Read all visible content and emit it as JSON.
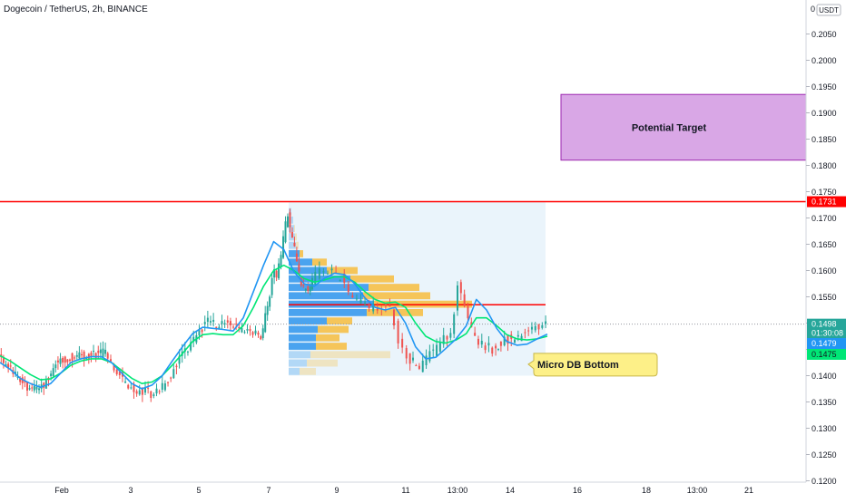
{
  "header": {
    "title": "Dogecoin / TetherUS, 2h, BINANCE"
  },
  "colors": {
    "up": "#26a69a",
    "down": "#ef5350",
    "ema_fast": "#2196f3",
    "ema_slow": "#00e676",
    "resistance": "#ff0000",
    "target_fill": "#d9a7e6",
    "target_stroke": "#9c27b0",
    "vp_up": "#4aa3ef",
    "vp_down": "#f5c55a",
    "range_fill": "#eaf4fb",
    "callout_fill": "#fdf088"
  },
  "chart_data": {
    "type": "candlestick",
    "symbol": "Dogecoin / TetherUS",
    "interval": "2h",
    "exchange": "BINANCE",
    "currency": "USDT",
    "ylim": [
      0.12,
      0.21
    ],
    "y_ticks": [
      "0.2050",
      "0.2000",
      "0.1950",
      "0.1900",
      "0.1850",
      "0.1800",
      "0.1750",
      "0.1700",
      "0.1650",
      "0.1600",
      "0.1550",
      "0.1500",
      "0.1450",
      "0.1400",
      "0.1350",
      "0.1300",
      "0.1250",
      "0.1200"
    ],
    "x_ticks": [
      "Feb",
      "3",
      "5",
      "7",
      "9",
      "11",
      "13:00",
      "14",
      "16",
      "18",
      "13:00",
      "21"
    ],
    "price_path": [
      [
        0.1433,
        0.1425,
        0.1418,
        0.1405,
        0.1395,
        0.1387,
        0.138,
        0.1375,
        0.1372,
        0.1378,
        0.139,
        0.1405,
        0.142,
        0.1428,
        0.1432,
        0.1435,
        0.1437,
        0.1438,
        0.1436,
        0.1439,
        0.1442,
        0.144,
        0.1443,
        0.1438
      ],
      [
        0.1425,
        0.1408,
        0.1395,
        0.1382,
        0.1372,
        0.1368,
        0.1373,
        0.1365,
        0.1372,
        0.1378,
        0.1395,
        0.141,
        0.143,
        0.1445,
        0.146,
        0.1475,
        0.149,
        0.1502,
        0.1498,
        0.1495,
        0.15,
        0.1497,
        0.1492,
        0.1488
      ],
      [
        0.1482,
        0.1475,
        0.149,
        0.151,
        0.153,
        0.1555,
        0.158,
        0.16,
        0.159,
        0.161,
        0.163,
        0.166,
        0.169,
        0.1705,
        0.1682,
        0.166,
        0.164,
        0.161,
        0.159,
        0.1575,
        0.1565,
        0.1572,
        0.156,
        0.157
      ],
      [
        0.1582,
        0.159,
        0.1595,
        0.16,
        0.1597,
        0.1602,
        0.1588,
        0.159,
        0.1575,
        0.156,
        0.155,
        0.1545,
        0.154,
        0.1535,
        0.1525,
        0.153,
        0.152,
        0.153,
        0.154,
        0.1525,
        0.15,
        0.1465,
        0.1448,
        0.1435
      ],
      [
        0.1425,
        0.1415,
        0.142,
        0.1432,
        0.144,
        0.1445,
        0.1452,
        0.146,
        0.1468,
        0.1475,
        0.1478,
        0.152,
        0.157,
        0.156,
        0.153,
        0.151,
        0.149,
        0.147,
        0.146,
        0.1458,
        0.145,
        0.1455,
        0.1448,
        0.1455
      ],
      [
        0.146,
        0.1468,
        0.147,
        0.1475,
        0.1482,
        0.149,
        0.1496,
        0.1498
      ]
    ],
    "ema_fast_series": [
      0.1425,
      0.1412,
      0.1395,
      0.1385,
      0.1378,
      0.1385,
      0.1405,
      0.1425,
      0.1432,
      0.1436,
      0.1436,
      0.1425,
      0.1405,
      0.1385,
      0.1375,
      0.1382,
      0.14,
      0.1428,
      0.1455,
      0.148,
      0.1492,
      0.149,
      0.1488,
      0.1485,
      0.151,
      0.156,
      0.161,
      0.1655,
      0.164,
      0.1598,
      0.1575,
      0.157,
      0.1585,
      0.1595,
      0.1592,
      0.1575,
      0.1548,
      0.153,
      0.1525,
      0.153,
      0.15,
      0.1455,
      0.1432,
      0.1435,
      0.1452,
      0.147,
      0.1495,
      0.1545,
      0.1525,
      0.149,
      0.1465,
      0.1458,
      0.146,
      0.147,
      0.1479
    ],
    "ema_slow_series": [
      0.1438,
      0.1428,
      0.1415,
      0.1402,
      0.1392,
      0.1394,
      0.1405,
      0.142,
      0.1428,
      0.1432,
      0.1432,
      0.1425,
      0.141,
      0.1395,
      0.1385,
      0.1388,
      0.14,
      0.142,
      0.1442,
      0.1465,
      0.1478,
      0.148,
      0.1478,
      0.1478,
      0.1495,
      0.153,
      0.157,
      0.16,
      0.161,
      0.16,
      0.1585,
      0.1578,
      0.1582,
      0.1588,
      0.1588,
      0.1578,
      0.156,
      0.1545,
      0.1538,
      0.154,
      0.153,
      0.15,
      0.1475,
      0.1465,
      0.1462,
      0.1468,
      0.148,
      0.151,
      0.151,
      0.1495,
      0.1478,
      0.147,
      0.1468,
      0.147,
      0.1475
    ],
    "resistance_level": 0.1731,
    "profile_poc": 0.1535,
    "range_box": {
      "top": 0.173,
      "bottom": 0.14
    },
    "volume_profile": [
      [
        0.1712,
        0.3,
        0.0
      ],
      [
        0.1696,
        0.5,
        0.0
      ],
      [
        0.168,
        0.6,
        0.1
      ],
      [
        0.1664,
        0.7,
        0.2
      ],
      [
        0.1648,
        0.8,
        0.3
      ],
      [
        0.1632,
        1.2,
        0.4
      ],
      [
        0.1616,
        2.6,
        1.6
      ],
      [
        0.16,
        4.2,
        3.4
      ],
      [
        0.1584,
        6.8,
        4.8
      ],
      [
        0.1568,
        8.8,
        5.6
      ],
      [
        0.1552,
        8.2,
        7.4
      ],
      [
        0.1536,
        9.4,
        10.8
      ],
      [
        0.152,
        8.6,
        6.2
      ],
      [
        0.1504,
        4.2,
        2.8
      ],
      [
        0.1488,
        3.2,
        3.4
      ],
      [
        0.1472,
        3.0,
        2.6
      ],
      [
        0.1456,
        3.0,
        3.4
      ],
      [
        0.144,
        2.4,
        8.8
      ],
      [
        0.1424,
        2.0,
        3.4
      ],
      [
        0.1408,
        1.2,
        1.8
      ]
    ],
    "target_zone": {
      "label": "Potential Target",
      "top": 0.1935,
      "bottom": 0.181
    },
    "annotation": {
      "label": "Micro DB Bottom",
      "price": 0.142
    },
    "last_price": "0.1498",
    "countdown": "01:30:08",
    "ema_fast_value": "0.1479",
    "ema_slow_value": "0.1475",
    "resistance_label": "0.1731",
    "axis_currency": "USDT",
    "axis_zero": "0"
  }
}
